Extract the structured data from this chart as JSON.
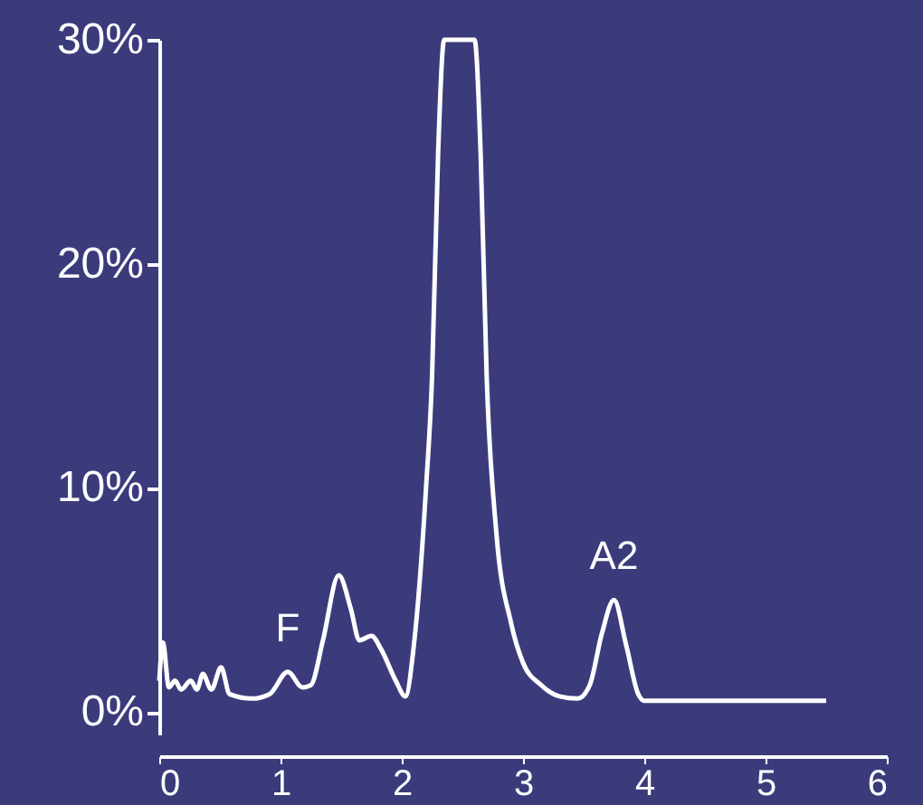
{
  "chart_data": {
    "type": "line",
    "x": [
      0,
      0.03,
      0.08,
      0.13,
      0.18,
      0.26,
      0.31,
      0.36,
      0.43,
      0.51,
      0.58,
      0.76,
      0.91,
      1.06,
      1.18,
      1.25,
      1.35,
      1.48,
      1.58,
      1.65,
      1.75,
      1.83,
      1.95,
      2.03,
      2.1,
      2.2,
      2.25,
      2.3,
      2.35,
      2.48,
      2.6,
      2.65,
      2.7,
      2.78,
      2.9,
      3.0,
      3.15,
      3.3,
      3.45,
      3.55,
      3.65,
      3.75,
      3.85,
      3.95,
      4.0,
      5.5
    ],
    "series": [
      {
        "color": "#ffffff",
        "values": [
          1.4,
          3.1,
          1.1,
          1.4,
          1.0,
          1.4,
          1.0,
          1.7,
          1.0,
          2.0,
          0.8,
          0.6,
          0.8,
          1.8,
          1.1,
          1.2,
          3.2,
          6.1,
          4.6,
          3.2,
          3.4,
          2.8,
          1.4,
          0.7,
          3,
          10,
          15,
          25,
          30,
          30,
          30,
          25,
          15,
          8,
          4,
          2.2,
          1.2,
          0.7,
          0.6,
          1.2,
          3.5,
          5.0,
          3.0,
          0.8,
          0.5,
          0.5
        ]
      }
    ],
    "xlim": [
      0,
      6
    ],
    "xticks": [
      0,
      1,
      2,
      3,
      4,
      5,
      6
    ],
    "ylim": [
      -1,
      30
    ],
    "yticks": [
      {
        "value": 0,
        "label": "0%"
      },
      {
        "value": 10,
        "label": "10%"
      },
      {
        "value": 20,
        "label": "20%"
      },
      {
        "value": 30,
        "label": "30%"
      }
    ],
    "annotations": [
      {
        "text": "F",
        "x": 1.06,
        "y": 1.8
      },
      {
        "text": "A2",
        "x": 3.75,
        "y": 5.0
      }
    ],
    "grid": false,
    "marker": "none",
    "line_style": "solid"
  }
}
